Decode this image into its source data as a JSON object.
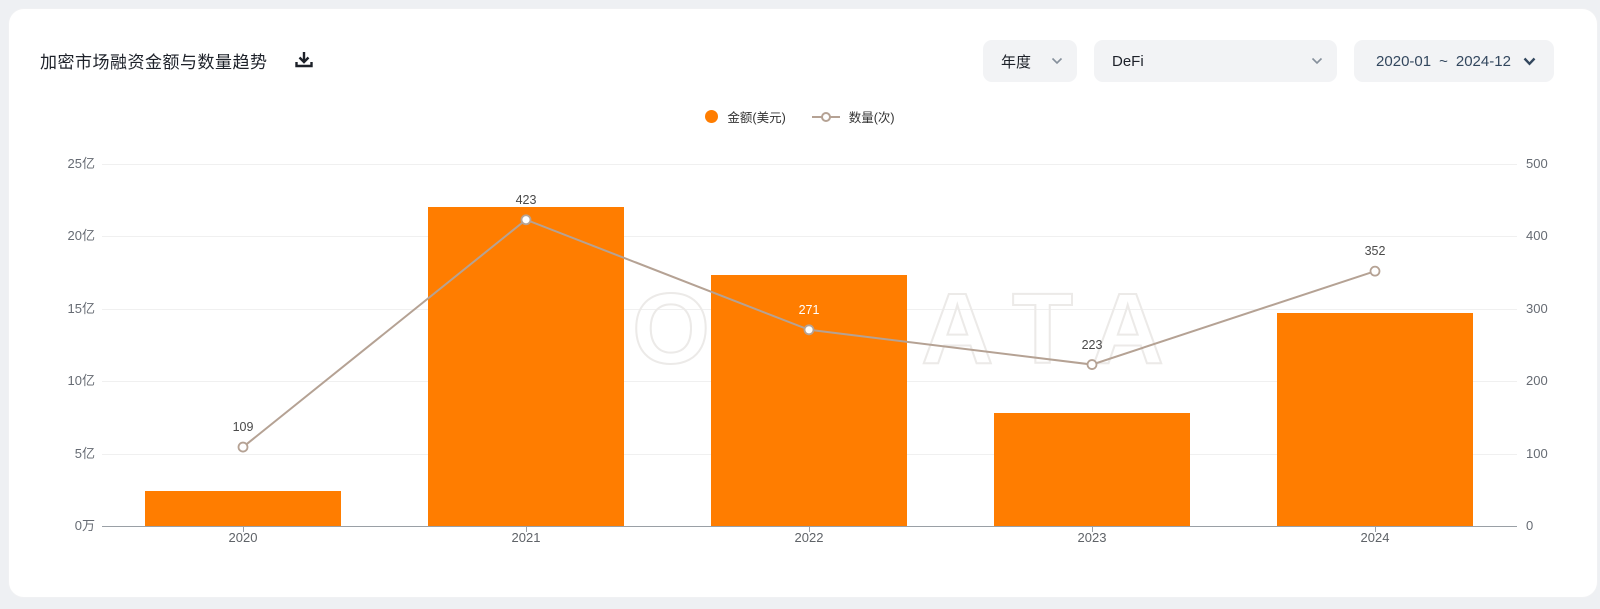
{
  "header": {
    "title": "加密市场融资金额与数量趋势",
    "filters": {
      "period": {
        "value": "年度"
      },
      "category": {
        "value": "DeFi"
      },
      "date_range": {
        "start": "2020-01",
        "separator": "~",
        "end": "2024-12"
      }
    }
  },
  "legend": [
    {
      "label": "金额(美元)",
      "marker": "circle"
    },
    {
      "label": "数量(次)",
      "marker": "line-circle"
    }
  ],
  "watermark": "ROOTDATA",
  "colors": {
    "bar": "#ff7d00",
    "line": "#b5a294",
    "label_default": "#4a4a4a",
    "label_on_bar": "#ffffff"
  },
  "chart_data": {
    "type": "bar",
    "title": "加密市场融资金额与数量趋势",
    "categories": [
      "2020",
      "2021",
      "2022",
      "2023",
      "2024"
    ],
    "series": [
      {
        "name": "金额(美元)",
        "type": "bar",
        "axis": "left",
        "unit": "亿美元",
        "values": [
          2.4,
          22,
          17.3,
          7.8,
          14.7
        ]
      },
      {
        "name": "数量(次)",
        "type": "line",
        "axis": "right",
        "values": [
          109,
          423,
          271,
          223,
          352
        ],
        "labels": [
          "109",
          "423",
          "271",
          "223",
          "352"
        ],
        "label_colors": [
          "#4a4a4a",
          "#4a4a4a",
          "#ffffff",
          "#4a4a4a",
          "#4a4a4a"
        ]
      }
    ],
    "left_axis": {
      "tick_labels": [
        "0万",
        "5亿",
        "10亿",
        "15亿",
        "20亿",
        "25亿"
      ],
      "min": 0,
      "max": 25
    },
    "right_axis": {
      "tick_labels": [
        "0",
        "100",
        "200",
        "300",
        "400",
        "500"
      ],
      "min": 0,
      "max": 500
    },
    "grid": true,
    "legend_position": "top-center"
  }
}
